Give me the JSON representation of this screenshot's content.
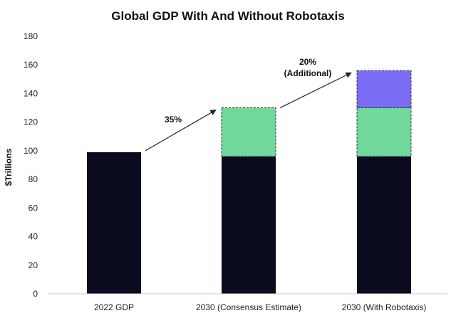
{
  "chart_data": {
    "type": "bar",
    "stacked": true,
    "title": "Global GDP With And Without Robotaxis",
    "ylabel": "$Trillions",
    "xlabel": "",
    "ylim": [
      0,
      180
    ],
    "yticks": [
      0,
      20,
      40,
      60,
      80,
      100,
      120,
      140,
      160,
      180
    ],
    "ytick_labels": [
      "0",
      "20",
      "40",
      "60",
      "80",
      "100",
      "120",
      "140",
      "160",
      "180"
    ],
    "categories": [
      "2022 GDP",
      "2030 (Consensus Estimate)",
      "2030 (With Robotaxis)"
    ],
    "series": [
      {
        "values": [
          99,
          96,
          96
        ],
        "color": "#0b0b1f",
        "dashed": false
      },
      {
        "values": [
          0,
          34,
          34
        ],
        "color": "#6fd89a",
        "dashed": true
      },
      {
        "values": [
          0,
          0,
          26
        ],
        "color": "#7b6cf6",
        "dashed": true
      }
    ],
    "grid": false,
    "annotations": [
      {
        "text": "35%",
        "from_category": 0,
        "to_category": 1
      },
      {
        "text": "20%",
        "text2": "(Additional)",
        "from_category": 1,
        "to_category": 2
      }
    ]
  }
}
